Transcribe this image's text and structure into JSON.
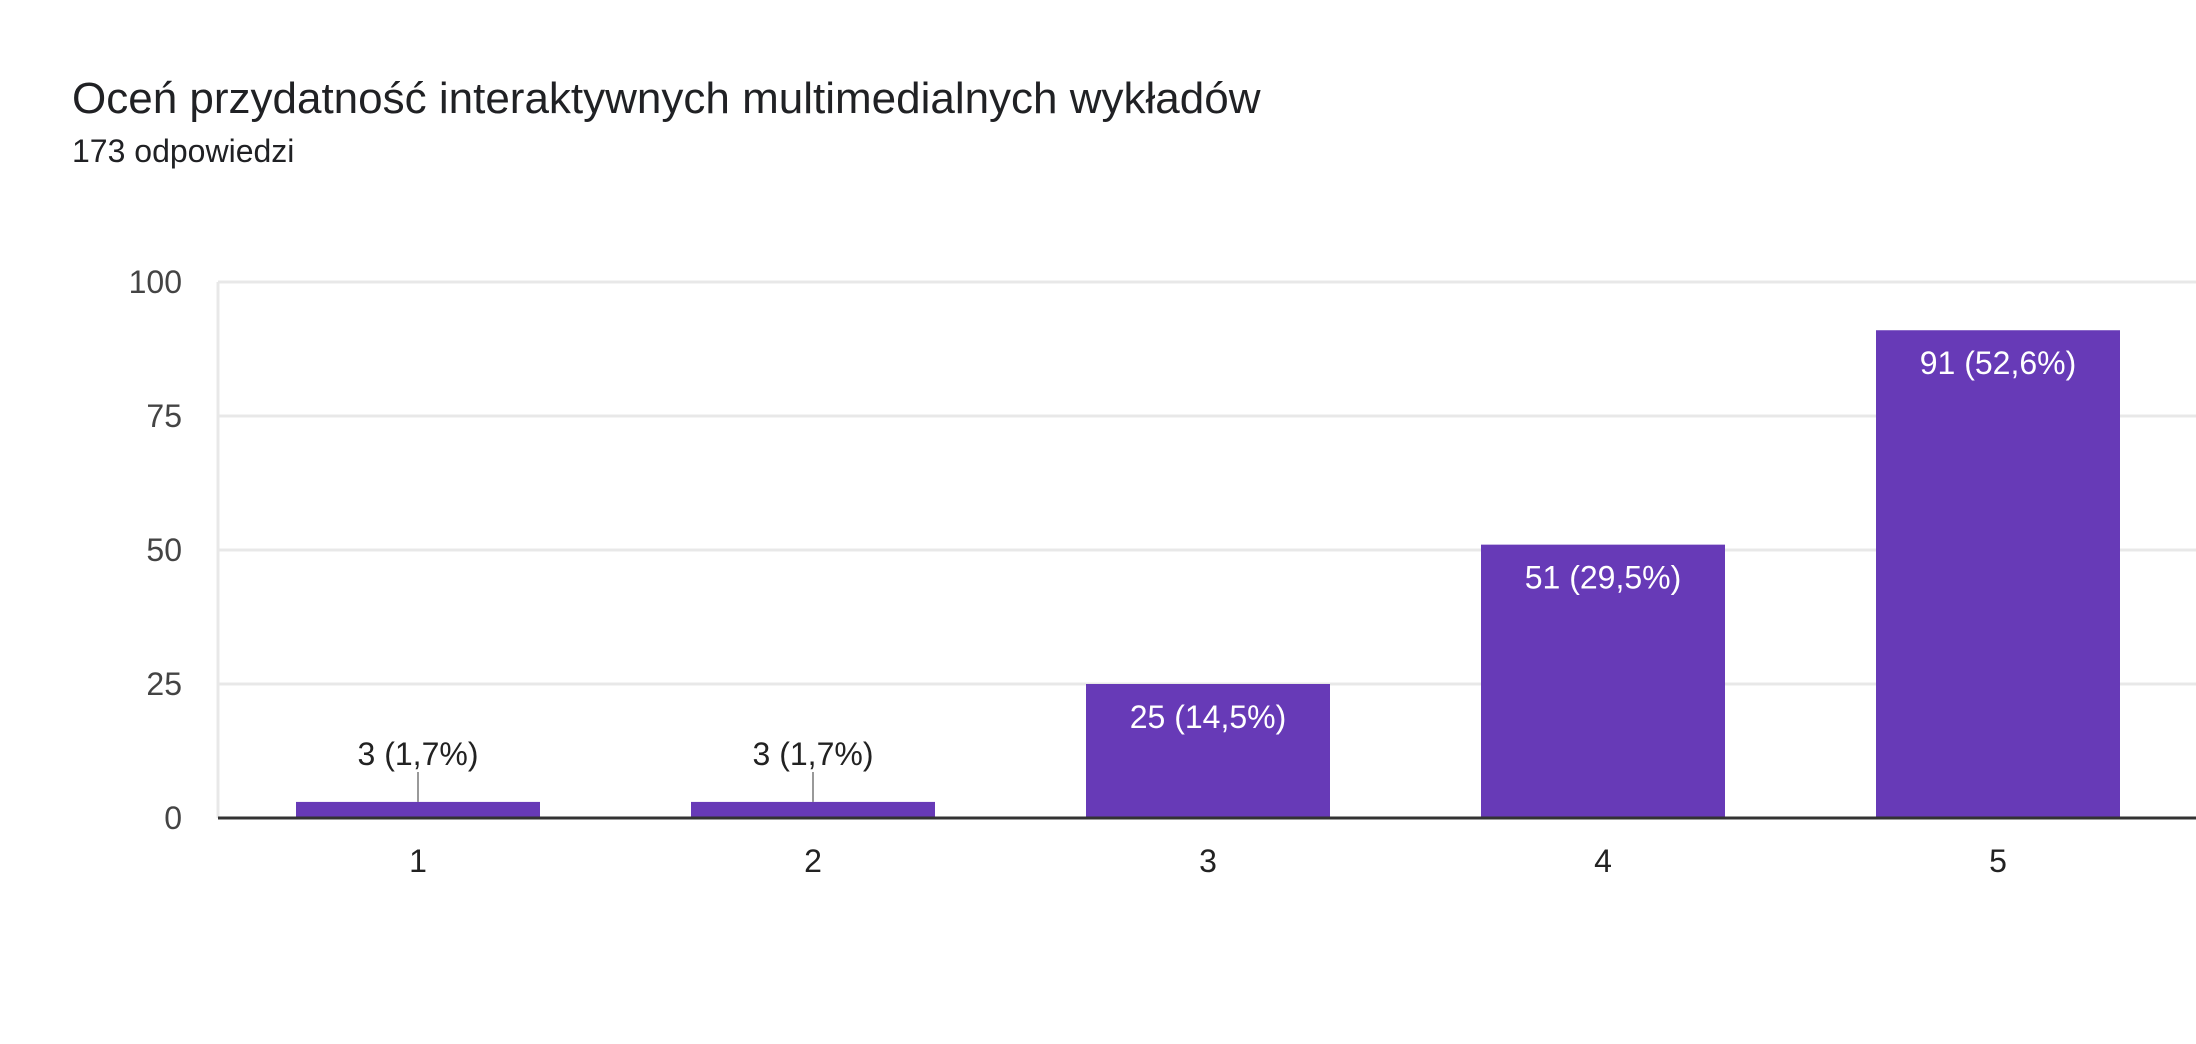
{
  "header": {
    "title": "Oceń przydatność interaktywnych multimedialnych wykładów",
    "subtitle": "173 odpowiedzi"
  },
  "chart_data": {
    "type": "bar",
    "title": "Oceń przydatność interaktywnych multimedialnych wykładów",
    "subtitle": "173 odpowiedzi",
    "xlabel": "",
    "ylabel": "",
    "categories": [
      "1",
      "2",
      "3",
      "4",
      "5"
    ],
    "values": [
      3,
      3,
      25,
      51,
      91
    ],
    "data_labels": [
      "3 (1,7%)",
      "3 (1,7%)",
      "25 (14,5%)",
      "51 (29,5%)",
      "91 (52,6%)"
    ],
    "ylim": [
      0,
      100
    ],
    "yticks": [
      0,
      25,
      50,
      75,
      100
    ],
    "grid": true,
    "legend": "none",
    "colors": {
      "bar": "#673ab7",
      "grid": "#e8e8e8",
      "axis": "#333333",
      "label_inside": "#ffffff",
      "label_outside": "#222222",
      "leader": "#999999"
    }
  }
}
